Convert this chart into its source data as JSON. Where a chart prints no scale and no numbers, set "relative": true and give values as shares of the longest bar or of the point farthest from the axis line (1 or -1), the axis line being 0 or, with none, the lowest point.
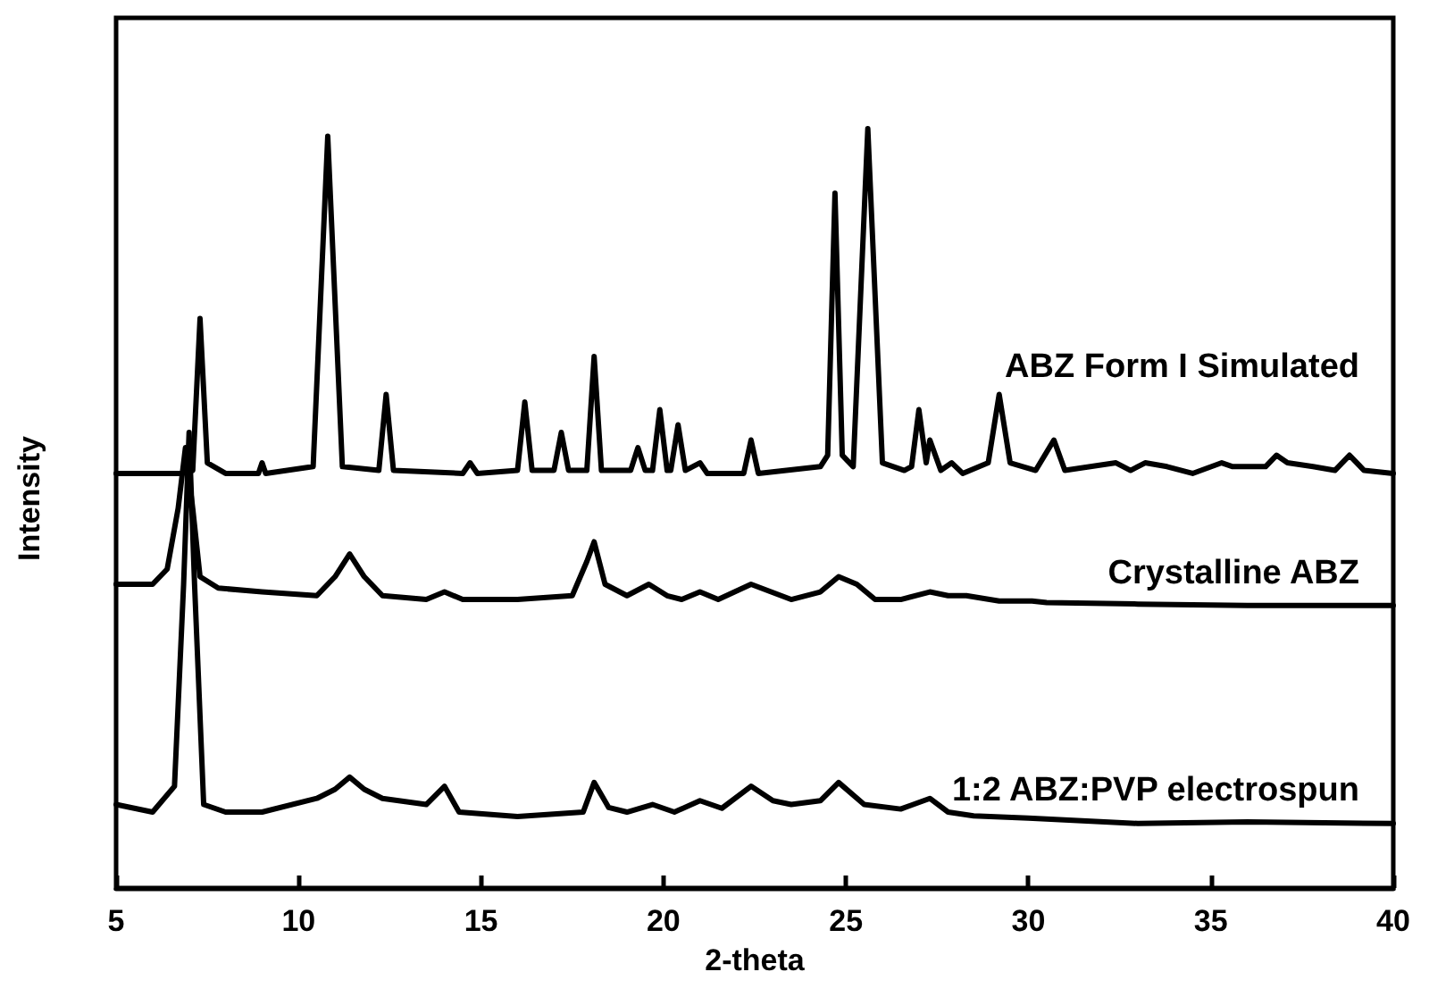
{
  "chart_data": {
    "type": "line",
    "xlabel": "2-theta",
    "ylabel": "Intensity",
    "relative": true,
    "xlim": [
      5,
      40
    ],
    "xticks": [
      5,
      10,
      15,
      20,
      25,
      30,
      35,
      40
    ],
    "grid": false,
    "legend": false,
    "marker": "none",
    "line_style": "solid",
    "series": [
      {
        "name": "ABZ Form I Simulated",
        "color": "#000000",
        "x": [
          5,
          6.8,
          7.1,
          7.3,
          7.5,
          8,
          8.9,
          9.0,
          9.1,
          10.4,
          10.8,
          11.2,
          12.2,
          12.4,
          12.6,
          14.5,
          14.7,
          14.9,
          16.0,
          16.2,
          16.4,
          17.0,
          17.2,
          17.4,
          17.9,
          18.1,
          18.3,
          19.1,
          19.3,
          19.5,
          19.7,
          19.9,
          20.1,
          20.2,
          20.4,
          20.6,
          21.0,
          21.2,
          22.2,
          22.4,
          22.6,
          24.3,
          24.5,
          24.7,
          24.9,
          25.2,
          25.6,
          26.0,
          26.6,
          26.8,
          27.0,
          27.2,
          27.3,
          27.6,
          27.9,
          28.2,
          28.9,
          29.2,
          29.5,
          30.2,
          30.7,
          31.0,
          32.4,
          32.8,
          33.2,
          33.8,
          34.5,
          35.3,
          35.6,
          36.5,
          36.8,
          37.1,
          37.8,
          38.4,
          38.8,
          39.2,
          40
        ],
        "values": [
          0.546,
          0.546,
          0.55,
          0.75,
          0.56,
          0.546,
          0.546,
          0.56,
          0.546,
          0.555,
          0.99,
          0.555,
          0.55,
          0.65,
          0.55,
          0.546,
          0.56,
          0.546,
          0.55,
          0.64,
          0.55,
          0.55,
          0.6,
          0.55,
          0.55,
          0.7,
          0.55,
          0.55,
          0.58,
          0.55,
          0.55,
          0.63,
          0.55,
          0.55,
          0.61,
          0.55,
          0.56,
          0.546,
          0.546,
          0.59,
          0.546,
          0.555,
          0.57,
          0.915,
          0.57,
          0.555,
          1.0,
          0.56,
          0.55,
          0.555,
          0.63,
          0.56,
          0.59,
          0.55,
          0.56,
          0.546,
          0.56,
          0.65,
          0.56,
          0.55,
          0.59,
          0.55,
          0.56,
          0.55,
          0.56,
          0.555,
          0.546,
          0.56,
          0.555,
          0.555,
          0.57,
          0.56,
          0.555,
          0.55,
          0.57,
          0.55,
          0.546
        ]
      },
      {
        "name": "Crystalline ABZ",
        "color": "#000000",
        "x": [
          5,
          6,
          6.4,
          6.7,
          6.9,
          7.1,
          7.3,
          7.8,
          9,
          10.5,
          11.0,
          11.4,
          11.8,
          12.3,
          13.5,
          14.0,
          14.5,
          16,
          17.5,
          17.9,
          18.1,
          18.4,
          19.0,
          19.6,
          20.1,
          20.5,
          21.0,
          21.5,
          22.4,
          23.5,
          24.3,
          24.8,
          25.3,
          25.8,
          26.5,
          27.3,
          27.8,
          28.3,
          29.2,
          30.1,
          30.5,
          33,
          36,
          40
        ],
        "values": [
          0.4,
          0.4,
          0.42,
          0.5,
          0.58,
          0.5,
          0.41,
          0.395,
          0.39,
          0.385,
          0.41,
          0.44,
          0.41,
          0.385,
          0.38,
          0.39,
          0.38,
          0.38,
          0.385,
          0.43,
          0.456,
          0.4,
          0.385,
          0.4,
          0.385,
          0.38,
          0.39,
          0.38,
          0.4,
          0.38,
          0.39,
          0.41,
          0.4,
          0.38,
          0.38,
          0.39,
          0.385,
          0.385,
          0.378,
          0.378,
          0.376,
          0.374,
          0.372,
          0.372
        ]
      },
      {
        "name": "1:2 ABZ:PVP electrospun",
        "color": "#000000",
        "x": [
          5,
          6,
          6.6,
          6.85,
          7.0,
          7.15,
          7.4,
          8,
          9,
          10.5,
          11.0,
          11.4,
          11.8,
          12.3,
          13.5,
          14.0,
          14.4,
          16,
          17.8,
          18.1,
          18.5,
          19.0,
          19.7,
          20.3,
          21,
          21.6,
          22.4,
          23.0,
          23.5,
          24.3,
          24.8,
          25.5,
          26.5,
          27.3,
          27.8,
          28.5,
          30,
          33,
          36,
          40
        ],
        "values": [
          0.11,
          0.1,
          0.134,
          0.4,
          0.6,
          0.4,
          0.11,
          0.1,
          0.1,
          0.118,
          0.13,
          0.146,
          0.13,
          0.118,
          0.11,
          0.134,
          0.1,
          0.094,
          0.1,
          0.139,
          0.106,
          0.1,
          0.11,
          0.1,
          0.115,
          0.105,
          0.134,
          0.115,
          0.11,
          0.115,
          0.139,
          0.11,
          0.104,
          0.118,
          0.1,
          0.095,
          0.092,
          0.085,
          0.087,
          0.085
        ]
      }
    ]
  }
}
